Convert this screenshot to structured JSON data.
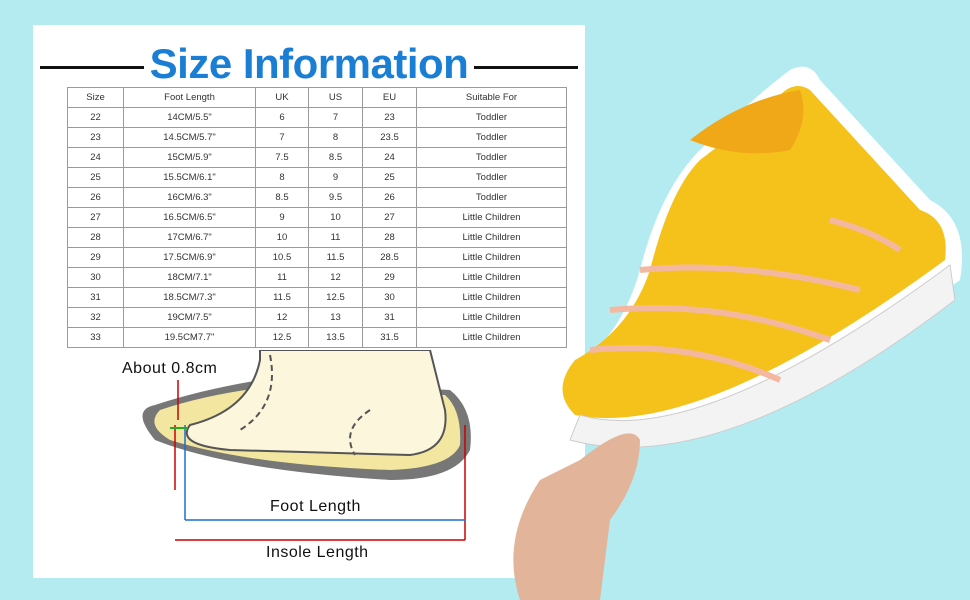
{
  "title": "Size Information",
  "table": {
    "headers": [
      "Size",
      "Foot Length",
      "UK",
      "US",
      "EU",
      "Suitable For"
    ],
    "rows": [
      [
        "22",
        "14CM/5.5\"",
        "6",
        "7",
        "23",
        "Toddler"
      ],
      [
        "23",
        "14.5CM/5.7\"",
        "7",
        "8",
        "23.5",
        "Toddler"
      ],
      [
        "24",
        "15CM/5.9\"",
        "7.5",
        "8.5",
        "24",
        "Toddler"
      ],
      [
        "25",
        "15.5CM/6.1\"",
        "8",
        "9",
        "25",
        "Toddler"
      ],
      [
        "26",
        "16CM/6.3\"",
        "8.5",
        "9.5",
        "26",
        "Toddler"
      ],
      [
        "27",
        "16.5CM/6.5\"",
        "9",
        "10",
        "27",
        "Little Children"
      ],
      [
        "28",
        "17CM/6.7\"",
        "10",
        "11",
        "28",
        "Little Children"
      ],
      [
        "29",
        "17.5CM/6.9\"",
        "10.5",
        "11.5",
        "28.5",
        "Little Children"
      ],
      [
        "30",
        "18CM/7.1\"",
        "11",
        "12",
        "29",
        "Little Children"
      ],
      [
        "31",
        "18.5CM/7.3\"",
        "11.5",
        "12.5",
        "30",
        "Little Children"
      ],
      [
        "32",
        "19CM/7.5\"",
        "12",
        "13",
        "31",
        "Little Children"
      ],
      [
        "33",
        "19.5CM7.7\"",
        "12.5",
        "13.5",
        "31.5",
        "Little Children"
      ]
    ]
  },
  "diagram": {
    "gap_label": "About 0.8cm",
    "foot_length_label": "Foot Length",
    "insole_length_label": "Insole Length"
  },
  "colors": {
    "background": "#b4ebf1",
    "title": "#1a7fd4",
    "shoe": "#f5c21b"
  }
}
